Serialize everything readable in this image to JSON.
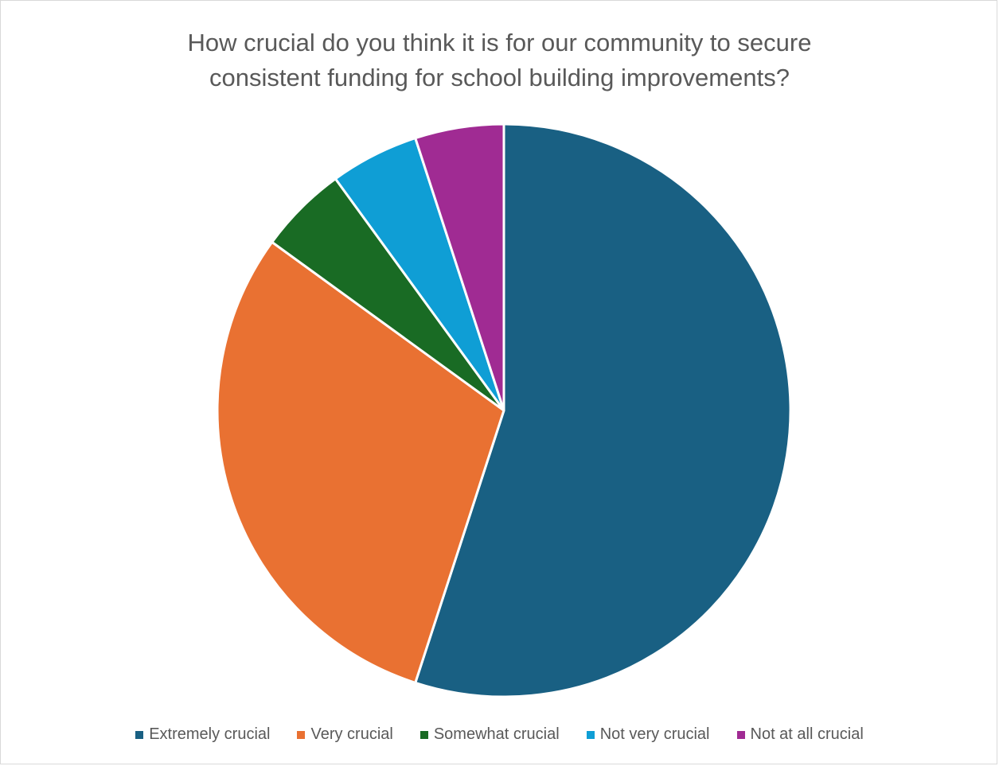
{
  "chart_data": {
    "type": "pie",
    "title": "How crucial do you think it is for our community to secure consistent funding for school building improvements?",
    "title_lines": [
      "How crucial do you think it is for our community to secure",
      "consistent funding for school building improvements?"
    ],
    "categories": [
      "Extremely crucial",
      "Very crucial",
      "Somewhat crucial",
      "Not very crucial",
      "Not at all crucial"
    ],
    "values": [
      55,
      30,
      5,
      5,
      5
    ],
    "colors": [
      "#196083",
      "#E97132",
      "#196B24",
      "#0F9ED5",
      "#A02B93"
    ],
    "start_angle_deg": 0,
    "direction": "clockwise",
    "legend_position": "bottom"
  }
}
